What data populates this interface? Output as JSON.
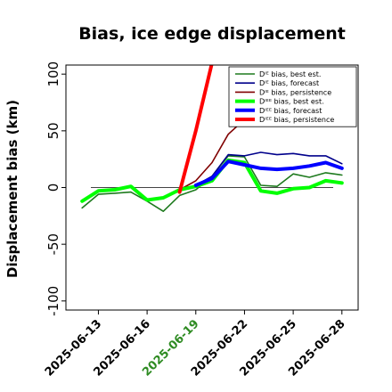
{
  "chart_data": {
    "type": "line",
    "title": "Bias, ice edge displacement",
    "ylabel": "Displacement bias (km)",
    "xlabel": "",
    "ylim": [
      -108,
      108
    ],
    "yticks": [
      100,
      50,
      0,
      -50,
      -100
    ],
    "xlim": [
      "2025-06-11",
      "2025-06-29"
    ],
    "xticks": [
      {
        "label": "2025-06-13",
        "date": "2025-06-13",
        "color": "#000000"
      },
      {
        "label": "2025-06-16",
        "date": "2025-06-16",
        "color": "#000000"
      },
      {
        "label": "2025-06-19",
        "date": "2025-06-19",
        "color": "#2e8b22"
      },
      {
        "label": "2025-06-22",
        "date": "2025-06-22",
        "color": "#000000"
      },
      {
        "label": "2025-06-25",
        "date": "2025-06-25",
        "color": "#000000"
      },
      {
        "label": "2025-06-28",
        "date": "2025-06-28",
        "color": "#000000"
      }
    ],
    "zero_line": true,
    "grid": false,
    "legend_position": "top-right",
    "series": [
      {
        "name": "Dᴵᴱ bias, best est.",
        "color": "#1e7a1e",
        "width": 1.6,
        "x": [
          "2025-06-12",
          "2025-06-13",
          "2025-06-14",
          "2025-06-15",
          "2025-06-16",
          "2025-06-17",
          "2025-06-18",
          "2025-06-19",
          "2025-06-20",
          "2025-06-21",
          "2025-06-22",
          "2025-06-23",
          "2025-06-24",
          "2025-06-25",
          "2025-06-26",
          "2025-06-27",
          "2025-06-28"
        ],
        "y": [
          -18,
          -6,
          -5,
          -4,
          -12,
          -21,
          -7,
          -2,
          10,
          28,
          27,
          2,
          1,
          12,
          9,
          13,
          11
        ]
      },
      {
        "name": "Dᴵᴱ bias, forecast",
        "color": "#00008b",
        "width": 1.6,
        "x": [
          "2025-06-19",
          "2025-06-20",
          "2025-06-21",
          "2025-06-22",
          "2025-06-23",
          "2025-06-24",
          "2025-06-25",
          "2025-06-26",
          "2025-06-27",
          "2025-06-28"
        ],
        "y": [
          2,
          10,
          29,
          28,
          31,
          29,
          30,
          28,
          28,
          21
        ]
      },
      {
        "name": "Dᴵᴱ bias, persistence",
        "color": "#800000",
        "width": 1.6,
        "x": [
          "2025-06-18",
          "2025-06-19",
          "2025-06-20",
          "2025-06-21",
          "2025-06-22"
        ],
        "y": [
          -2,
          6,
          22,
          47,
          60
        ]
      },
      {
        "name": "Dᴵᴱᴱ bias, best est.",
        "color": "#00ff00",
        "width": 4,
        "x": [
          "2025-06-12",
          "2025-06-13",
          "2025-06-14",
          "2025-06-15",
          "2025-06-16",
          "2025-06-17",
          "2025-06-18",
          "2025-06-19",
          "2025-06-20",
          "2025-06-21",
          "2025-06-22",
          "2025-06-23",
          "2025-06-24",
          "2025-06-25",
          "2025-06-26",
          "2025-06-27",
          "2025-06-28"
        ],
        "y": [
          -12,
          -3,
          -2,
          1,
          -11,
          -9,
          -2,
          1,
          6,
          24,
          22,
          -3,
          -5,
          -1,
          0,
          6,
          4
        ]
      },
      {
        "name": "Dᴵᴱᴱ bias, forecast",
        "color": "#0000ff",
        "width": 4,
        "x": [
          "2025-06-19",
          "2025-06-20",
          "2025-06-21",
          "2025-06-22",
          "2025-06-23",
          "2025-06-24",
          "2025-06-25",
          "2025-06-26",
          "2025-06-27",
          "2025-06-28"
        ],
        "y": [
          2,
          8,
          23,
          20,
          17,
          16,
          17,
          19,
          22,
          17
        ]
      },
      {
        "name": "Dᴵᴱᴱ bias, persistence",
        "color": "#ff0000",
        "width": 4,
        "x": [
          "2025-06-18",
          "2025-06-19",
          "2025-06-20",
          "2025-06-21"
        ],
        "y": [
          -4,
          50,
          110,
          170
        ]
      }
    ]
  }
}
